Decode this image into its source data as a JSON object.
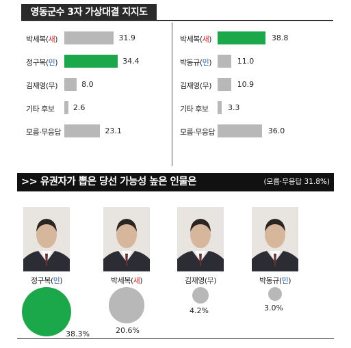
{
  "title": "영동군수 3자 가상대결 지지도",
  "left_chart": {
    "rows": [
      {
        "name": "박세복",
        "party": "새",
        "value": "31.9"
      },
      {
        "name": "정구복",
        "party": "민",
        "value": "34.4"
      },
      {
        "name": "김재영",
        "party": "무",
        "value": "8.0"
      },
      {
        "name": "기타 후보",
        "party": "",
        "value": "2.6"
      },
      {
        "name": "모름·무응답",
        "party": "",
        "value": "23.1"
      }
    ]
  },
  "right_chart": {
    "rows": [
      {
        "name": "박세복",
        "party": "새",
        "value": "38.8"
      },
      {
        "name": "박동규",
        "party": "민",
        "value": "11.0"
      },
      {
        "name": "김재영",
        "party": "무",
        "value": "10.9"
      },
      {
        "name": "기타 후보",
        "party": "",
        "value": "3.3"
      },
      {
        "name": "모름·무응답",
        "party": "",
        "value": "36.0"
      }
    ]
  },
  "section2": {
    "title": ">> 유권자가 뽑은 당선 가능성 높은 인물은",
    "note": "(모름·무응답 31.8%)"
  },
  "candidates": [
    {
      "name": "정구복",
      "party": "민",
      "pct": "38.3%"
    },
    {
      "name": "박세복",
      "party": "새",
      "pct": "20.6%"
    },
    {
      "name": "김재영",
      "party": "무",
      "pct": "4.2%"
    },
    {
      "name": "박동규",
      "party": "민",
      "pct": "3.0%"
    }
  ],
  "colors": {
    "highlight": "#1aa84a",
    "bar": "#b8b8b8",
    "party_sae": "#d22222",
    "party_min": "#2462b8"
  },
  "chart_data": [
    {
      "type": "bar",
      "title": "영동군수 3자 가상대결 지지도",
      "categories": [
        "박세복(새)",
        "정구복(민)",
        "김재영(무)",
        "기타 후보",
        "모름·무응답"
      ],
      "values": [
        31.9,
        34.4,
        8.0,
        2.6,
        23.1
      ],
      "highlight_index": 1
    },
    {
      "type": "bar",
      "title": "영동군수 3자 가상대결 지지도",
      "categories": [
        "박세복(새)",
        "박동규(민)",
        "김재영(무)",
        "기타 후보",
        "모름·무응답"
      ],
      "values": [
        38.8,
        11.0,
        10.9,
        3.3,
        36.0
      ],
      "highlight_index": 0
    },
    {
      "type": "bubble",
      "title": "유권자가 뽑은 당선 가능성 높은 인물은",
      "categories": [
        "정구복(민)",
        "박세복(새)",
        "김재영(무)",
        "박동규(민)"
      ],
      "values": [
        38.3,
        20.6,
        4.2,
        3.0
      ]
    }
  ]
}
